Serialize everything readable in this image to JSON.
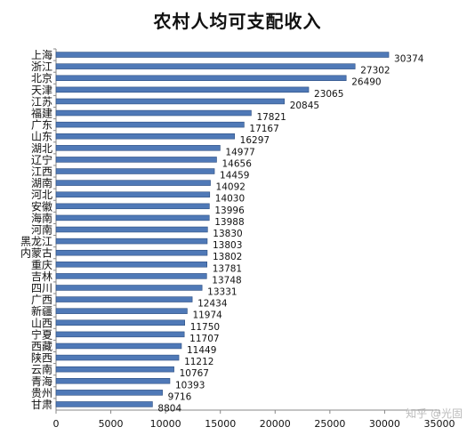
{
  "chart_data": {
    "type": "bar",
    "orientation": "horizontal",
    "title": "农村人均可支配收入",
    "categories": [
      "上海",
      "浙江",
      "北京",
      "天津",
      "江苏",
      "福建",
      "广东",
      "山东",
      "湖北",
      "辽宁",
      "江西",
      "湖南",
      "河北",
      "安徽",
      "海南",
      "河南",
      "黑龙江",
      "内蒙古",
      "重庆",
      "吉林",
      "四川",
      "广西",
      "新疆",
      "山西",
      "宁夏",
      "西藏",
      "陕西",
      "云南",
      "青海",
      "贵州",
      "甘肃"
    ],
    "values": [
      30374,
      27302,
      26490,
      23065,
      20845,
      17821,
      17167,
      16297,
      14977,
      14656,
      14459,
      14092,
      14030,
      13996,
      13988,
      13830,
      13803,
      13802,
      13781,
      13748,
      13331,
      12434,
      11974,
      11750,
      11707,
      11449,
      11212,
      10767,
      10393,
      9716,
      8804
    ],
    "xlim": [
      0,
      35000
    ],
    "xticks": [
      0,
      5000,
      10000,
      15000,
      20000,
      25000,
      30000,
      35000
    ],
    "grid": false,
    "bar_color": "#4f79b7",
    "bar_edge_color": "#2d4e80"
  },
  "watermark": "知乎 @光固"
}
